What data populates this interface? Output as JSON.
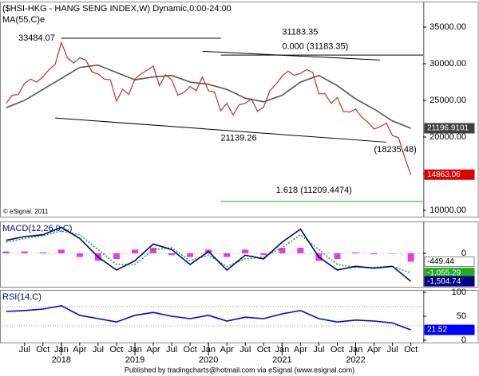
{
  "footer": "Published by tradingcharts@hotmail.com via eSignal (www.esignal.com)",
  "chart_data": [
    {
      "type": "line",
      "title": "($HSI-HKG - HANG SENG INDEX,W) Dynamic,0:00-24:00",
      "watermark": "© eSignal, 2011",
      "xlim": [
        "2017-03",
        "2022-12"
      ],
      "ylim": [
        9130,
        38478
      ],
      "yticks": [
        {
          "value": 10000,
          "label": "10000.00"
        },
        {
          "value": 15000,
          "label": "15000.00"
        },
        {
          "value": 20000,
          "label": "20000.00"
        },
        {
          "value": 25000,
          "label": "25000.00"
        },
        {
          "value": 30000,
          "label": "30000.00"
        },
        {
          "value": 35000,
          "label": "35000.00"
        }
      ],
      "series": [
        {
          "x": [
            "2017-04",
            "2017-05",
            "2017-06",
            "2017-07",
            "2017-08",
            "2017-09",
            "2017-10",
            "2017-11",
            "2017-12",
            "2018-01",
            "2018-02",
            "2018-03",
            "2018-04",
            "2018-05",
            "2018-06",
            "2018-07",
            "2018-08",
            "2018-09",
            "2018-10",
            "2018-11",
            "2018-12",
            "2019-01",
            "2019-02",
            "2019-03",
            "2019-04",
            "2019-05",
            "2019-06",
            "2019-07",
            "2019-08",
            "2019-09",
            "2019-10",
            "2019-11",
            "2019-12",
            "2020-01",
            "2020-02",
            "2020-03",
            "2020-04",
            "2020-05",
            "2020-06",
            "2020-07",
            "2020-08",
            "2020-09",
            "2020-10",
            "2020-11",
            "2020-12",
            "2021-01",
            "2021-02",
            "2021-03",
            "2021-04",
            "2021-05",
            "2021-06",
            "2021-07",
            "2021-08",
            "2021-09",
            "2021-10",
            "2021-11",
            "2021-12",
            "2022-01",
            "2022-02",
            "2022-03",
            "2022-04",
            "2022-05",
            "2022-06",
            "2022-07",
            "2022-08",
            "2022-09",
            "2022-10"
          ],
          "values": [
            24600,
            25700,
            25800,
            27300,
            27900,
            27500,
            28200,
            29200,
            29900,
            32900,
            30800,
            30100,
            30800,
            30500,
            28900,
            28600,
            27900,
            27800,
            24900,
            26500,
            25800,
            27900,
            28600,
            29100,
            29700,
            27000,
            28500,
            27800,
            25700,
            26100,
            26900,
            26300,
            28200,
            26300,
            26100,
            23600,
            24600,
            23000,
            24400,
            24600,
            25200,
            23500,
            24100,
            26300,
            27200,
            28300,
            29000,
            28400,
            28700,
            29200,
            28800,
            25900,
            25900,
            24600,
            25400,
            23500,
            23400,
            23800,
            22700,
            22000,
            21100,
            21400,
            21900,
            20200,
            19900,
            17200,
            14863.06
          ],
          "color": "#c03030",
          "tag_color": "#e00000",
          "last_label": "14863.06"
        },
        {
          "name": "MA(55,C)e",
          "x": [
            "2017-04",
            "2017-07",
            "2017-10",
            "2018-01",
            "2018-04",
            "2018-07",
            "2018-10",
            "2019-01",
            "2019-04",
            "2019-07",
            "2019-10",
            "2020-01",
            "2020-04",
            "2020-07",
            "2020-10",
            "2021-01",
            "2021-04",
            "2021-07",
            "2021-10",
            "2022-01",
            "2022-04",
            "2022-07",
            "2022-10"
          ],
          "values": [
            24000,
            25000,
            26500,
            28000,
            29500,
            29800,
            28800,
            27800,
            28200,
            28400,
            27500,
            27200,
            26500,
            25300,
            24800,
            25700,
            27500,
            28400,
            27000,
            25200,
            23800,
            22200,
            21196.9101
          ],
          "color": "#555555",
          "tag_color": "#404040",
          "last_label": "21196.9101"
        }
      ],
      "lines": [
        {
          "points": [
            [
              "2018-01",
              33484.07
            ],
            [
              "2020-03",
              33484.07
            ]
          ],
          "color": "#000000"
        },
        {
          "points": [
            [
              "2019-12",
              31700
            ],
            [
              "2022-05",
              30500
            ]
          ],
          "color": "#000000"
        },
        {
          "points": [
            [
              "2017-12",
              22600
            ],
            [
              "2022-06",
              19300
            ]
          ],
          "color": "#000000"
        },
        {
          "points": [
            [
              "2020-03",
              31183.35
            ],
            [
              "2022-12",
              31183.35
            ]
          ],
          "color": "#000000"
        },
        {
          "points": [
            [
              "2020-03",
              11209.4474
            ],
            [
              "2022-12",
              11209.4474
            ]
          ],
          "color": "#20a020"
        }
      ],
      "annotations": [
        {
          "text": "33484.07",
          "x": "2017-06",
          "y": 33484.07
        },
        {
          "text": "31183.35",
          "x": "2021-01",
          "y": 34300
        },
        {
          "text": "0.000 (31183.35)",
          "x": "2021-01",
          "y": 32300
        },
        {
          "text": "21139.26",
          "x": "2020-03",
          "y": 19800
        },
        {
          "text": "(18235.48)",
          "x": "2022-04",
          "y": 18235.48
        },
        {
          "text": "1.618 (11209.4474)",
          "x": "2020-12",
          "y": 12700
        }
      ]
    },
    {
      "type": "macd",
      "title": "MACD(12,26,9,C)",
      "xlim": [
        "2017-03",
        "2022-12"
      ],
      "ylim": [
        -1800,
        1714
      ],
      "yticks": [
        0
      ],
      "series": [
        {
          "x": [
            "2017-04",
            "2017-07",
            "2017-10",
            "2018-01",
            "2018-04",
            "2018-07",
            "2018-10",
            "2019-01",
            "2019-04",
            "2019-07",
            "2019-10",
            "2020-01",
            "2020-04",
            "2020-07",
            "2020-10",
            "2021-01",
            "2021-04",
            "2021-07",
            "2021-10",
            "2022-01",
            "2022-04",
            "2022-07",
            "2022-10"
          ],
          "values": [
            100,
            100,
            50,
            200,
            -200,
            -400,
            -300,
            200,
            300,
            -100,
            -200,
            200,
            -200,
            200,
            -100,
            300,
            300,
            -400,
            -300,
            50,
            -50,
            0,
            -449.44
          ],
          "style": "bar",
          "color": "#e040e0",
          "tag_color": "#ffffff",
          "last_label": "-449.44"
        },
        {
          "x": [
            "2017-04",
            "2017-07",
            "2017-10",
            "2018-01",
            "2018-04",
            "2018-07",
            "2018-10",
            "2019-01",
            "2019-04",
            "2019-07",
            "2019-10",
            "2020-01",
            "2020-04",
            "2020-07",
            "2020-10",
            "2021-01",
            "2021-04",
            "2021-07",
            "2021-10",
            "2022-01",
            "2022-04",
            "2022-07",
            "2022-10"
          ],
          "values": [
            600,
            800,
            950,
            1200,
            1000,
            200,
            -600,
            -600,
            200,
            300,
            -400,
            -100,
            -700,
            -300,
            -200,
            300,
            1000,
            200,
            -600,
            -750,
            -750,
            -700,
            -1055.29
          ],
          "style": "dotted",
          "color": "#22aa22",
          "tag_color": "#22aa22",
          "last_label": "-1,055.29"
        },
        {
          "x": [
            "2017-04",
            "2017-07",
            "2017-10",
            "2018-01",
            "2018-04",
            "2018-07",
            "2018-10",
            "2019-01",
            "2019-04",
            "2019-07",
            "2019-10",
            "2020-01",
            "2020-04",
            "2020-07",
            "2020-10",
            "2021-01",
            "2021-04",
            "2021-07",
            "2021-10",
            "2022-01",
            "2022-04",
            "2022-07",
            "2022-10"
          ],
          "values": [
            700,
            900,
            1000,
            1400,
            800,
            -200,
            -900,
            -400,
            500,
            200,
            -600,
            100,
            -900,
            -100,
            -300,
            600,
            1300,
            -200,
            -900,
            -700,
            -800,
            -700,
            -1504.74
          ],
          "color": "#00008b",
          "tag_color": "#00008b",
          "last_label": "-1,504.74"
        }
      ]
    },
    {
      "type": "rsi",
      "title": "RSI(14,C)",
      "xlim": [
        "2017-03",
        "2022-12"
      ],
      "ylim": [
        -5,
        105
      ],
      "yticks": [
        0,
        50,
        100
      ],
      "levels": [
        70,
        30
      ],
      "series": [
        {
          "x": [
            "2017-04",
            "2017-07",
            "2017-10",
            "2018-01",
            "2018-04",
            "2018-07",
            "2018-10",
            "2019-01",
            "2019-04",
            "2019-07",
            "2019-10",
            "2020-01",
            "2020-04",
            "2020-07",
            "2020-10",
            "2021-01",
            "2021-04",
            "2021-07",
            "2021-10",
            "2022-01",
            "2022-04",
            "2022-07",
            "2022-10"
          ],
          "values": [
            60,
            62,
            65,
            72,
            52,
            45,
            38,
            52,
            58,
            50,
            45,
            52,
            40,
            48,
            45,
            55,
            62,
            45,
            38,
            42,
            40,
            36,
            21.52
          ],
          "color": "#0000ff",
          "tag_color": "#0000ff",
          "last_label": "21.52"
        }
      ],
      "xticks": [
        {
          "value": "2017-07",
          "label": "Jul"
        },
        {
          "value": "2017-10",
          "label": "Oct"
        },
        {
          "value": "2018-01",
          "label": "Jan"
        },
        {
          "value": "2018-04",
          "label": "Apr"
        },
        {
          "value": "2018-07",
          "label": "Jul"
        },
        {
          "value": "2018-10",
          "label": "Oct"
        },
        {
          "value": "2019-01",
          "label": "Jan"
        },
        {
          "value": "2019-04",
          "label": "Apr"
        },
        {
          "value": "2019-07",
          "label": "Jul"
        },
        {
          "value": "2019-10",
          "label": "Oct"
        },
        {
          "value": "2020-01",
          "label": "Jan"
        },
        {
          "value": "2020-04",
          "label": "Apr"
        },
        {
          "value": "2020-07",
          "label": "Jul"
        },
        {
          "value": "2020-10",
          "label": "Oct"
        },
        {
          "value": "2021-01",
          "label": "Jan"
        },
        {
          "value": "2021-04",
          "label": "Apr"
        },
        {
          "value": "2021-07",
          "label": "Jul"
        },
        {
          "value": "2021-10",
          "label": "Oct"
        },
        {
          "value": "2022-01",
          "label": "Jan"
        },
        {
          "value": "2022-04",
          "label": "Apr"
        },
        {
          "value": "2022-07",
          "label": "Jul"
        },
        {
          "value": "2022-10",
          "label": "Oct"
        }
      ],
      "year_ticks": [
        {
          "value": "2018-01",
          "label": "2018"
        },
        {
          "value": "2019-01",
          "label": "2019"
        },
        {
          "value": "2020-01",
          "label": "2020"
        },
        {
          "value": "2021-01",
          "label": "2021"
        },
        {
          "value": "2022-01",
          "label": "2022"
        }
      ]
    }
  ]
}
